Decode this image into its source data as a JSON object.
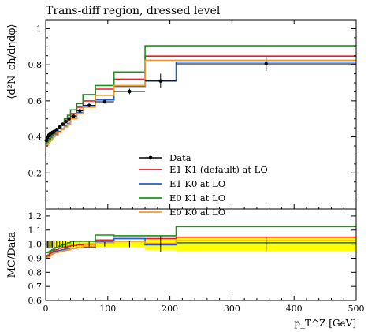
{
  "chart_data": [
    {
      "type": "line",
      "title": "Trans-diff region, dressed level",
      "ylabel": "⟨d²N_ch/dηdφ⟩",
      "ylim": [
        0,
        1.05
      ],
      "yticks": [
        "0.2",
        "0.4",
        "0.6",
        "0.8",
        "1"
      ],
      "xlim": [
        0,
        500
      ],
      "legend_position": "bottom-right",
      "bin_edges": [
        0,
        2,
        4,
        6,
        8,
        10,
        12,
        15,
        20,
        25,
        30,
        35,
        40,
        50,
        60,
        80,
        110,
        160,
        210,
        500
      ],
      "data": {
        "name": "Data",
        "color": "#000000",
        "x": [
          1,
          3,
          5,
          7,
          9,
          11,
          13.5,
          17.5,
          22.5,
          27.5,
          32.5,
          37.5,
          45,
          55,
          70,
          95,
          135,
          185,
          355
        ],
        "y": [
          0.38,
          0.395,
          0.41,
          0.415,
          0.42,
          0.425,
          0.43,
          0.44,
          0.455,
          0.47,
          0.485,
          0.5,
          0.515,
          0.545,
          0.575,
          0.595,
          0.652,
          0.71,
          0.805
        ],
        "err": [
          0.01,
          0.01,
          0.01,
          0.01,
          0.01,
          0.01,
          0.01,
          0.01,
          0.01,
          0.01,
          0.01,
          0.01,
          0.01,
          0.01,
          0.01,
          0.01,
          0.015,
          0.04,
          0.04
        ]
      },
      "series": [
        {
          "name": "E1 K1 (default) at LO",
          "color": "#ee1d23",
          "values": [
            0.35,
            0.36,
            0.37,
            0.38,
            0.39,
            0.4,
            0.41,
            0.425,
            0.445,
            0.465,
            0.485,
            0.505,
            0.53,
            0.565,
            0.6,
            0.665,
            0.72,
            0.848,
            0.848
          ]
        },
        {
          "name": "E1 K0 at LO",
          "color": "#1f5fcf",
          "values": [
            0.35,
            0.36,
            0.37,
            0.38,
            0.385,
            0.395,
            0.405,
            0.415,
            0.43,
            0.445,
            0.46,
            0.475,
            0.5,
            0.535,
            0.57,
            0.605,
            0.68,
            0.71,
            0.815
          ]
        },
        {
          "name": "E0 K1 at LO",
          "color": "#1d8f1d",
          "values": [
            0.36,
            0.37,
            0.38,
            0.39,
            0.4,
            0.41,
            0.42,
            0.435,
            0.455,
            0.475,
            0.5,
            0.52,
            0.55,
            0.585,
            0.635,
            0.685,
            0.76,
            0.905,
            0.905
          ]
        },
        {
          "name": "E0 K0 at LO",
          "color": "#f39a26",
          "values": [
            0.345,
            0.355,
            0.365,
            0.375,
            0.38,
            0.39,
            0.4,
            0.41,
            0.425,
            0.44,
            0.455,
            0.47,
            0.5,
            0.53,
            0.565,
            0.63,
            0.685,
            0.825,
            0.825
          ]
        }
      ]
    },
    {
      "type": "line",
      "ylabel": "MC/Data",
      "xlabel": "p_T^Z [GeV]",
      "ylim": [
        0.6,
        1.25
      ],
      "yticks": [
        "0.6",
        "0.7",
        "0.8",
        "0.9",
        "1.0",
        "1.1",
        "1.2"
      ],
      "xticks": [
        "0",
        "100",
        "200",
        "300",
        "400",
        "500"
      ],
      "band_color": "#ffff00",
      "band": [
        [
          0.98,
          1.02
        ],
        [
          0.98,
          1.02
        ],
        [
          0.98,
          1.02
        ],
        [
          0.98,
          1.02
        ],
        [
          0.98,
          1.02
        ],
        [
          0.98,
          1.02
        ],
        [
          0.98,
          1.02
        ],
        [
          0.98,
          1.02
        ],
        [
          0.98,
          1.02
        ],
        [
          0.98,
          1.02
        ],
        [
          0.98,
          1.02
        ],
        [
          0.98,
          1.02
        ],
        [
          0.98,
          1.02
        ],
        [
          0.98,
          1.02
        ],
        [
          0.98,
          1.02
        ],
        [
          0.98,
          1.02
        ],
        [
          0.98,
          1.02
        ],
        [
          0.96,
          1.04
        ],
        [
          0.95,
          1.05
        ]
      ],
      "ratio_series": [
        {
          "name": "E1 K1 (default) at LO",
          "color": "#ee1d23",
          "values": [
            0.92,
            0.915,
            0.925,
            0.935,
            0.94,
            0.945,
            0.955,
            0.96,
            0.97,
            0.975,
            0.98,
            0.985,
            0.99,
            0.995,
            1.0,
            1.03,
            1.04,
            1.04,
            1.05
          ]
        },
        {
          "name": "E1 K0 at LO",
          "color": "#1f5fcf",
          "values": [
            0.91,
            0.91,
            0.915,
            0.92,
            0.93,
            0.935,
            0.945,
            0.95,
            0.955,
            0.96,
            0.965,
            0.965,
            0.97,
            0.975,
            0.98,
            1.015,
            1.04,
            0.995,
            1.01
          ]
        },
        {
          "name": "E0 K1 at LO",
          "color": "#1d8f1d",
          "values": [
            0.94,
            0.94,
            0.945,
            0.95,
            0.955,
            0.96,
            0.97,
            0.975,
            0.985,
            0.995,
            1.0,
            1.01,
            1.02,
            1.02,
            1.02,
            1.065,
            1.06,
            1.06,
            1.125
          ]
        },
        {
          "name": "E0 K0 at LO",
          "color": "#f39a26",
          "values": [
            0.905,
            0.905,
            0.91,
            0.915,
            0.925,
            0.93,
            0.935,
            0.94,
            0.945,
            0.95,
            0.955,
            0.96,
            0.97,
            0.975,
            0.985,
            1.01,
            1.02,
            1.005,
            1.025
          ]
        }
      ]
    }
  ]
}
